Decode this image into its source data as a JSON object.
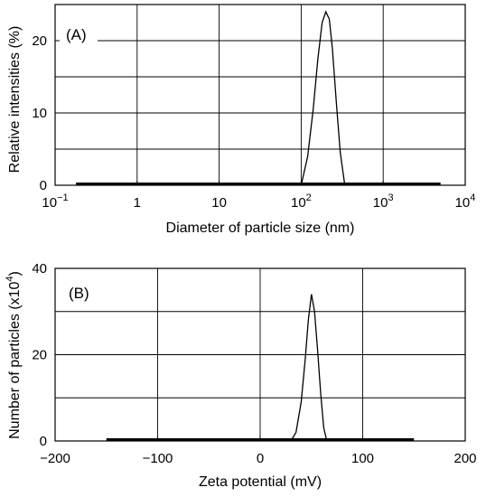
{
  "chart_data": [
    {
      "type": "line",
      "panel_label": "(A)",
      "xlabel": "Diameter of particle size (nm)",
      "ylabel": "Relative intensities (%)",
      "x_scale": "log",
      "xlim": [
        0.1,
        10000
      ],
      "ylim": [
        0,
        25
      ],
      "x_ticks": [
        {
          "value": 0.1,
          "base": "10",
          "exp": "−1"
        },
        {
          "value": 1,
          "base": "1",
          "exp": ""
        },
        {
          "value": 10,
          "base": "10",
          "exp": ""
        },
        {
          "value": 100,
          "base": "10",
          "exp": "2"
        },
        {
          "value": 1000,
          "base": "10",
          "exp": "3"
        },
        {
          "value": 10000,
          "base": "10",
          "exp": "4"
        }
      ],
      "y_ticks": [
        0,
        10,
        20
      ],
      "gridlines_y": [
        5,
        10,
        15,
        20
      ],
      "grid": true,
      "baseline_range": [
        0.18,
        5000
      ],
      "series": [
        {
          "x": [
            100,
            120,
            140,
            160,
            180,
            200,
            220,
            240,
            270,
            300,
            340
          ],
          "y": [
            0,
            4,
            10.5,
            17.5,
            22.5,
            24,
            23,
            19,
            11,
            4.5,
            0
          ]
        }
      ]
    },
    {
      "type": "line",
      "panel_label": "(B)",
      "xlabel": "Zeta potential (mV)",
      "ylabel": "Number of particles (x10",
      "ylabel_sup": "4",
      "ylabel_close": ")",
      "xlim": [
        -200,
        200
      ],
      "ylim": [
        0,
        40
      ],
      "x_ticks": [
        "−200",
        "−100",
        "0",
        "100",
        "200"
      ],
      "x_tick_values": [
        -200,
        -100,
        0,
        100,
        200
      ],
      "y_ticks": [
        0,
        20,
        40
      ],
      "gridlines_y": [
        10,
        20,
        30
      ],
      "grid": true,
      "baseline_range": [
        -150,
        150
      ],
      "series": [
        {
          "x": [
            30,
            35,
            40,
            44,
            47,
            50,
            53,
            56,
            59,
            62,
            65
          ],
          "y": [
            0,
            2,
            9,
            19,
            28,
            34,
            30,
            21,
            11,
            3,
            0
          ]
        }
      ]
    }
  ]
}
